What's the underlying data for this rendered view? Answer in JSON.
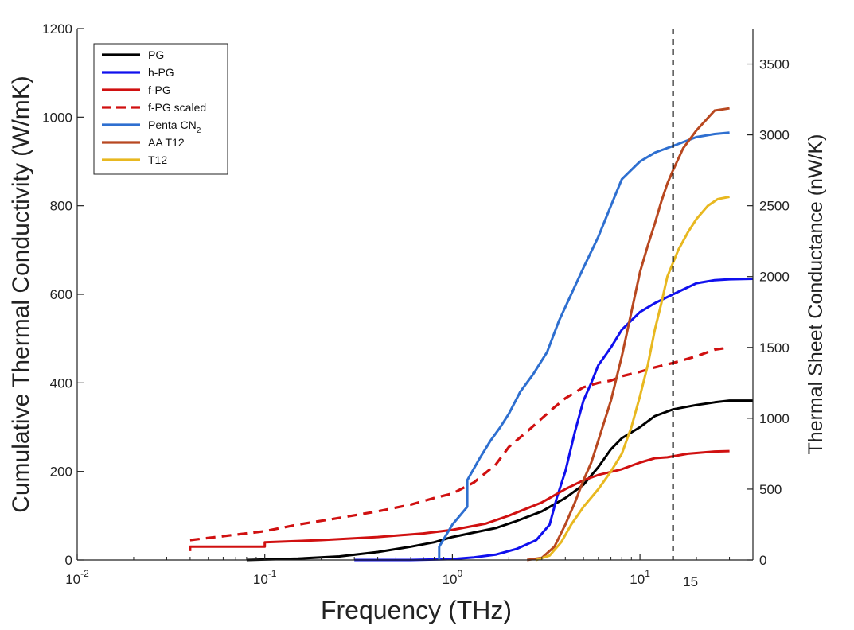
{
  "chart_data": {
    "type": "line",
    "title": "",
    "xlabel": "Frequency (THz)",
    "ylabel": "Cumulative Thermal Conductivity (W/mK)",
    "y2label": "Thermal Sheet Conductance (nW/K)",
    "xscale": "log",
    "xlim": [
      0.01,
      40
    ],
    "ylim": [
      0,
      1200
    ],
    "y2lim": [
      0,
      3750
    ],
    "x_ticks": [
      {
        "value": 0.01,
        "base": "10",
        "exp": "-2"
      },
      {
        "value": 0.1,
        "base": "10",
        "exp": "-1"
      },
      {
        "value": 1,
        "base": "10",
        "exp": "0"
      },
      {
        "value": 10,
        "base": "10",
        "exp": "1"
      }
    ],
    "x_extra_tick": {
      "value": 15,
      "label": "15"
    },
    "y_ticks": [
      0,
      200,
      400,
      600,
      800,
      1000,
      1200
    ],
    "y_tick_labels": [
      "0",
      "200",
      "400",
      "600",
      "800",
      "1000",
      "1200"
    ],
    "y2_ticks": [
      0,
      500,
      1000,
      1500,
      2000,
      2500,
      3000,
      3500
    ],
    "y2_tick_labels": [
      "0",
      "500",
      "1000",
      "1500",
      "2000",
      "2500",
      "3000",
      "3500"
    ],
    "vline": {
      "x": 15,
      "style": "dashed",
      "color": "#000000"
    },
    "legend_position": "top-left",
    "series": [
      {
        "name": "PG",
        "color": "#000000",
        "dash": false,
        "x": [
          0.08,
          0.15,
          0.25,
          0.4,
          0.6,
          0.8,
          1.0,
          1.3,
          1.7,
          2.2,
          3.0,
          4.0,
          5.0,
          6.0,
          7.0,
          8.0,
          10.0,
          12.0,
          15.0,
          20.0,
          25.0,
          30.0,
          40.0
        ],
        "y": [
          0,
          3,
          8,
          18,
          30,
          40,
          52,
          62,
          72,
          88,
          110,
          140,
          170,
          210,
          250,
          275,
          300,
          325,
          340,
          350,
          356,
          360,
          360
        ]
      },
      {
        "name": "h-PG",
        "color": "#1010ee",
        "dash": false,
        "x": [
          0.3,
          0.6,
          1.0,
          1.3,
          1.7,
          2.2,
          2.8,
          3.3,
          3.6,
          4.0,
          4.5,
          5.0,
          5.5,
          6.0,
          7.0,
          8.0,
          10.0,
          12.0,
          15.0,
          20.0,
          25.0,
          30.0,
          40.0
        ],
        "y": [
          0,
          0,
          2,
          6,
          12,
          25,
          45,
          80,
          140,
          200,
          290,
          360,
          400,
          440,
          480,
          520,
          560,
          580,
          600,
          625,
          632,
          634,
          635
        ]
      },
      {
        "name": "f-PG",
        "color": "#d01010",
        "dash": false,
        "x": [
          0.04,
          0.04,
          0.1,
          0.1,
          0.2,
          0.4,
          0.7,
          1.0,
          1.5,
          2.0,
          3.0,
          4.0,
          5.0,
          6.0,
          8.0,
          10.0,
          12.0,
          14.0,
          18.0,
          25.0,
          30.0
        ],
        "y": [
          20,
          30,
          30,
          40,
          45,
          52,
          60,
          68,
          82,
          100,
          130,
          160,
          180,
          192,
          205,
          220,
          230,
          232,
          240,
          245,
          246
        ]
      },
      {
        "name": "f-PG scaled",
        "color": "#d01010",
        "dash": true,
        "x": [
          0.04,
          0.1,
          0.15,
          0.25,
          0.4,
          0.6,
          0.8,
          1.0,
          1.3,
          1.7,
          2.0,
          2.5,
          3.0,
          3.5,
          4.0,
          5.0,
          6.0,
          7.0,
          8.0,
          10.0,
          12.0,
          15.0,
          20.0,
          25.0,
          30.0
        ],
        "y": [
          45,
          65,
          80,
          95,
          110,
          125,
          140,
          150,
          175,
          215,
          255,
          290,
          320,
          345,
          365,
          390,
          400,
          405,
          415,
          425,
          435,
          445,
          460,
          475,
          480
        ]
      },
      {
        "name": "Penta CN",
        "name_sub": "2",
        "color": "#2e6fd0",
        "dash": false,
        "x": [
          0.85,
          0.85,
          1.0,
          1.2,
          1.2,
          1.4,
          1.6,
          1.8,
          2.0,
          2.3,
          2.7,
          3.2,
          3.7,
          4.3,
          5.0,
          6.0,
          7.0,
          8.0,
          10.0,
          12.0,
          15.0,
          20.0,
          25.0,
          30.0
        ],
        "y": [
          0,
          30,
          80,
          120,
          180,
          230,
          270,
          300,
          330,
          380,
          420,
          470,
          540,
          600,
          660,
          730,
          800,
          860,
          900,
          920,
          935,
          955,
          962,
          965
        ]
      },
      {
        "name": "AA T12",
        "color": "#b84820",
        "dash": false,
        "x": [
          2.5,
          3.0,
          3.5,
          4.0,
          4.5,
          5.0,
          5.5,
          6.0,
          7.0,
          8.0,
          9.0,
          10.0,
          11.0,
          12.0,
          13.0,
          14.0,
          15.0,
          17.0,
          20.0,
          25.0,
          30.0
        ],
        "y": [
          0,
          5,
          30,
          80,
          130,
          180,
          220,
          270,
          360,
          460,
          560,
          650,
          710,
          760,
          810,
          850,
          880,
          930,
          970,
          1015,
          1020
        ]
      },
      {
        "name": "T12",
        "color": "#e8b820",
        "dash": false,
        "x": [
          2.8,
          3.3,
          3.8,
          4.3,
          5.0,
          6.0,
          7.0,
          8.0,
          9.0,
          10.0,
          11.0,
          12.0,
          13.0,
          14.0,
          16.0,
          18.0,
          20.0,
          23.0,
          26.0,
          30.0
        ],
        "y": [
          0,
          10,
          40,
          80,
          120,
          160,
          200,
          240,
          300,
          370,
          440,
          520,
          580,
          640,
          700,
          740,
          770,
          800,
          815,
          820
        ]
      }
    ]
  }
}
